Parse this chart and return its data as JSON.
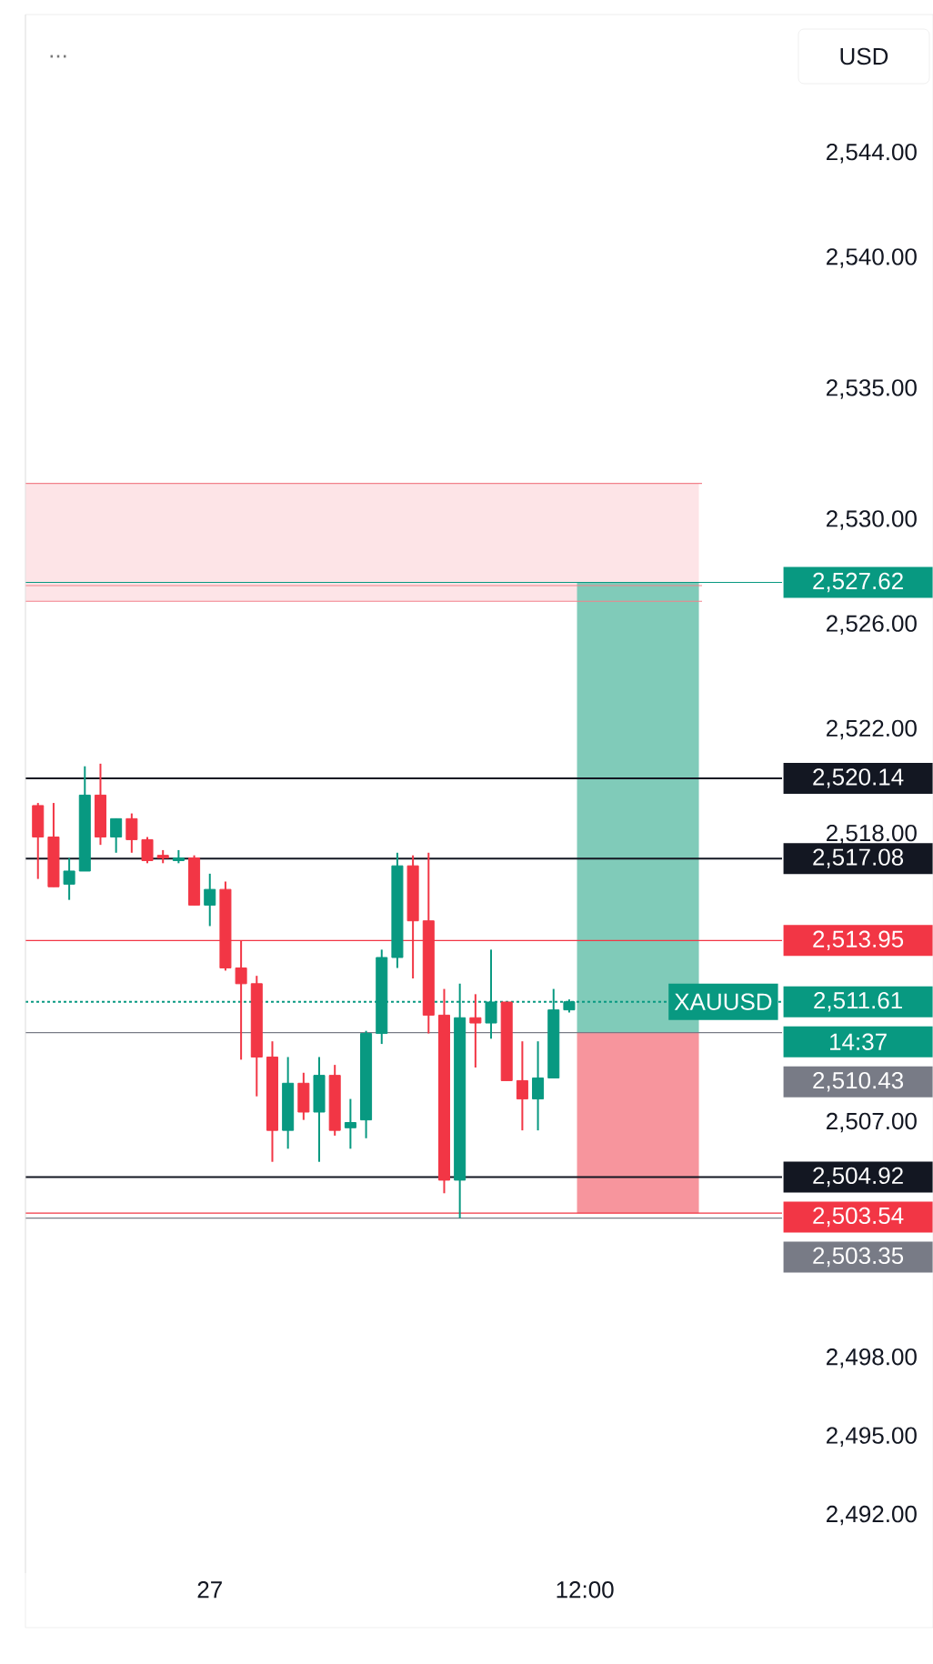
{
  "chart_data": {
    "type": "candlestick",
    "categories": [
      null,
      null,
      null,
      null,
      null,
      null,
      null,
      null,
      null,
      null,
      null,
      "27",
      null,
      null,
      null,
      null,
      null,
      null,
      null,
      null,
      null,
      null,
      null,
      null,
      null,
      null,
      null,
      null,
      null,
      null,
      null,
      null,
      null,
      null,
      null,
      "12:00",
      null,
      null,
      null,
      null,
      null,
      null,
      null
    ],
    "annotations": [
      "USD",
      "...",
      "XAUUSD",
      "14:37"
    ],
    "ylim": [
      2489.8,
      2549.3
    ],
    "yticks": [
      {
        "value": 2544,
        "label": "2,544.00"
      },
      {
        "value": 2540,
        "label": "2,540.00"
      },
      {
        "value": 2535,
        "label": "2,535.00"
      },
      {
        "value": 2530,
        "label": "2,530.00"
      },
      {
        "value": 2526,
        "label": "2,526.00"
      },
      {
        "value": 2522,
        "label": "2,522.00"
      },
      {
        "value": 2518,
        "label": "2,518.00"
      },
      {
        "value": 2507,
        "label": "2,507.00"
      },
      {
        "value": 2498,
        "label": "2,498.00"
      },
      {
        "value": 2495,
        "label": "2,495.00"
      },
      {
        "value": 2492,
        "label": "2,492.00"
      }
    ],
    "series": [
      {
        "ohlc": [
          [
            2519.1,
            2519.2,
            2516.3,
            2517.9
          ],
          [
            2517.9,
            2519.2,
            2516.0,
            2516.0
          ],
          [
            2516.1,
            2517.1,
            2515.5,
            2516.6
          ],
          [
            2516.6,
            2520.6,
            2516.6,
            2519.5
          ],
          [
            2519.5,
            2520.7,
            2517.6,
            2517.9
          ],
          [
            2517.9,
            2518.6,
            2517.3,
            2518.6
          ],
          [
            2518.6,
            2518.8,
            2517.3,
            2517.8
          ],
          [
            2517.8,
            2517.9,
            2516.9,
            2517.0
          ],
          [
            2517.2,
            2517.4,
            2516.9,
            2517.1
          ],
          [
            2517.0,
            2517.4,
            2516.9,
            2517.1
          ],
          [
            2517.1,
            2517.2,
            2515.3,
            2515.3
          ],
          [
            2515.3,
            2516.5,
            2514.5,
            2515.9
          ],
          [
            2515.9,
            2516.2,
            2512.8,
            2512.9
          ],
          [
            2512.9,
            2513.95,
            2509.4,
            2512.3
          ],
          [
            2512.3,
            2512.6,
            2508.0,
            2509.5
          ],
          [
            2509.5,
            2510.1,
            2505.5,
            2506.7
          ],
          [
            2506.7,
            2509.5,
            2506.0,
            2508.5
          ],
          [
            2508.5,
            2508.9,
            2507.1,
            2507.4
          ],
          [
            2507.4,
            2509.5,
            2505.5,
            2508.8
          ],
          [
            2508.8,
            2509.2,
            2506.5,
            2506.7
          ],
          [
            2506.8,
            2507.9,
            2506.0,
            2507.0
          ],
          [
            2507.1,
            2510.5,
            2506.4,
            2510.4
          ],
          [
            2510.4,
            2513.6,
            2510.0,
            2513.3
          ],
          [
            2513.3,
            2517.3,
            2512.9,
            2516.8
          ],
          [
            2516.8,
            2517.2,
            2512.5,
            2514.7
          ],
          [
            2514.7,
            2517.3,
            2510.4,
            2511.1
          ],
          [
            2511.1,
            2512.1,
            2504.3,
            2504.8
          ],
          [
            2504.8,
            2512.3,
            2503.35,
            2511.0
          ],
          [
            2511.0,
            2511.9,
            2509.1,
            2510.8
          ],
          [
            2510.8,
            2513.6,
            2510.2,
            2511.6
          ],
          [
            2511.6,
            2511.6,
            2508.6,
            2508.6
          ],
          [
            2508.6,
            2510.1,
            2506.7,
            2507.9
          ],
          [
            2507.9,
            2510.1,
            2506.7,
            2508.7
          ],
          [
            2508.7,
            2512.1,
            2508.7,
            2511.3
          ],
          [
            2511.3,
            2511.7,
            2511.2,
            2511.61
          ],
          null,
          null,
          null,
          null,
          null,
          null,
          null,
          null
        ],
        "colors": [
          "#f23645",
          "#f23645",
          "#089981",
          "#089981",
          "#f23645",
          "#089981",
          "#f23645",
          "#f23645",
          "#f23645",
          "#089981",
          "#f23645",
          "#089981",
          "#f23645",
          "#f23645",
          "#f23645",
          "#f23645",
          "#089981",
          "#f23645",
          "#089981",
          "#f23645",
          "#089981",
          "#089981",
          "#089981",
          "#089981",
          "#f23645",
          "#f23645",
          "#f23645",
          "#089981",
          "#f23645",
          "#089981",
          "#f23645",
          "#f23645",
          "#089981",
          "#089981",
          "#089981",
          null,
          null,
          null,
          null,
          null,
          null,
          null,
          null
        ]
      }
    ],
    "ref_lines": [
      {
        "axis": "y",
        "value": 2531.4,
        "color": "#f2828c",
        "line_style": "solid"
      },
      {
        "axis": "y",
        "value": 2527.5,
        "color": "#f2828c",
        "line_style": "solid"
      },
      {
        "axis": "y",
        "value": 2526.9,
        "color": "#f2828c",
        "line_style": "solid"
      },
      {
        "axis": "y",
        "value": 2527.62,
        "label": "2,527.62",
        "color": "#089981",
        "line_style": "solid"
      },
      {
        "axis": "y",
        "value": 2513.95,
        "label": "2,513.95",
        "color": "#f23645",
        "line_style": "solid"
      },
      {
        "axis": "y",
        "value": 2510.43,
        "label": "2,510.43",
        "color": "#787b86",
        "line_style": "solid"
      },
      {
        "axis": "y",
        "value": 2503.54,
        "label": "2,503.54",
        "color": "#f23645",
        "line_style": "solid"
      },
      {
        "axis": "y",
        "value": 2503.35,
        "label": "2,503.35",
        "color": "#787b86",
        "line_style": "solid"
      },
      {
        "axis": "y",
        "value": 2520.14,
        "label": "2,520.14",
        "color": "#131722",
        "line_style": "solid"
      },
      {
        "axis": "y",
        "value": 2517.08,
        "label": "2,517.08",
        "color": "#131722",
        "line_style": "solid"
      },
      {
        "axis": "y",
        "value": 2511.61,
        "label": "2,511.61",
        "color": "#089981",
        "line_style": "dotted"
      },
      {
        "axis": "y",
        "value": 2504.92,
        "label": "2,504.92",
        "color": "#131722",
        "line_style": "solid"
      }
    ],
    "bands": [
      {
        "axis": "y",
        "from": 2526.9,
        "to": 2531.4,
        "color": "#fde4e7"
      },
      {
        "axis": "y",
        "from": 2510.43,
        "to": 2527.62,
        "color": "#80cbb9"
      },
      {
        "axis": "y",
        "from": 2503.54,
        "to": 2510.43,
        "color": "#f7959d"
      }
    ]
  }
}
